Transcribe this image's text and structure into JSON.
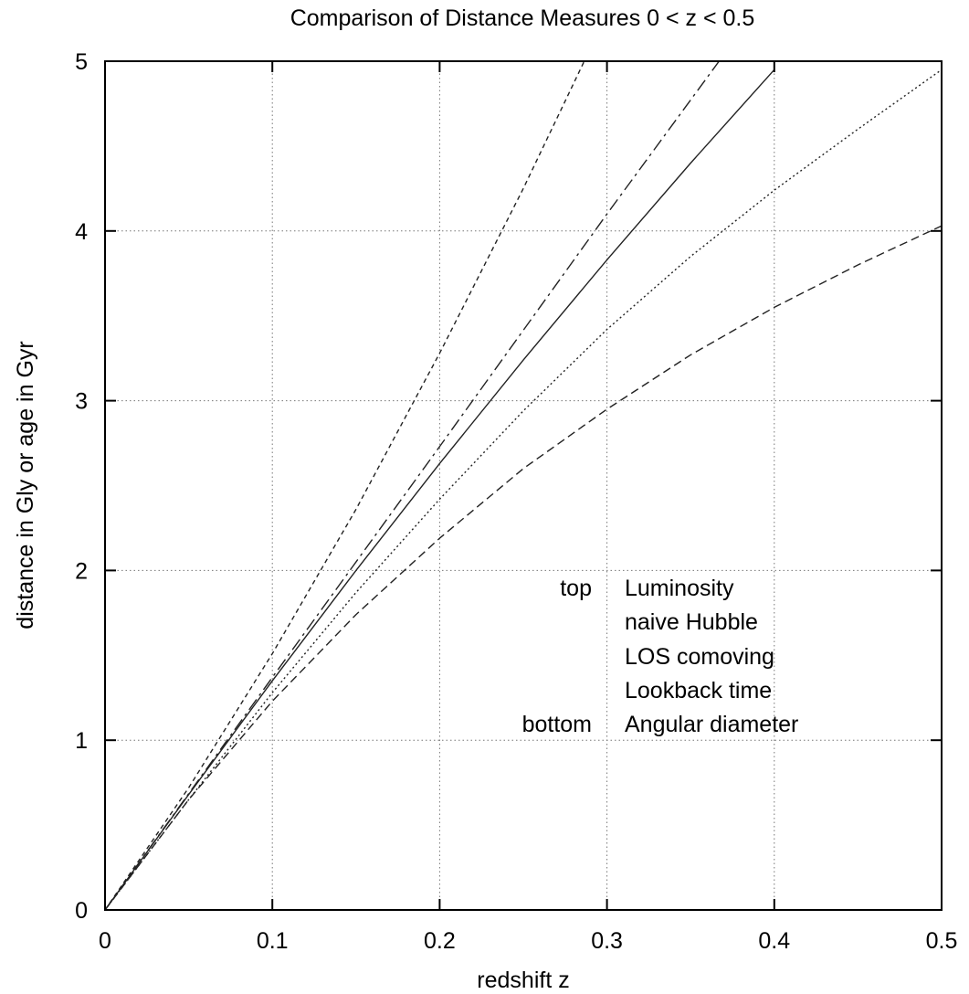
{
  "chart_data": {
    "type": "line",
    "title": "Comparison of Distance Measures 0 < z < 0.5",
    "xlabel": "redshift z",
    "ylabel": "distance in Gly or age in Gyr",
    "xlim": [
      0,
      0.5
    ],
    "ylim": [
      0,
      5
    ],
    "xticks": [
      "0",
      "0.1",
      "0.2",
      "0.3",
      "0.4",
      "0.5"
    ],
    "yticks": [
      "0",
      "1",
      "2",
      "3",
      "4",
      "5"
    ],
    "grid": true,
    "legend": {
      "placement": "center-right",
      "top_label": "top",
      "bottom_label": "bottom",
      "entries": [
        "Luminosity",
        "naive Hubble",
        "LOS comoving",
        "Lookback time",
        "Angular diameter"
      ]
    },
    "series": [
      {
        "name": "Luminosity",
        "dash": "short-dash",
        "x": [
          0,
          0.05,
          0.1,
          0.15,
          0.2,
          0.25,
          0.3
        ],
        "y": [
          0,
          0.72,
          1.51,
          2.36,
          3.28,
          4.25,
          5.28
        ]
      },
      {
        "name": "naive Hubble",
        "dash": "dash-dot",
        "x": [
          0,
          0.1,
          0.2,
          0.3,
          0.367
        ],
        "y": [
          0,
          1.37,
          2.73,
          4.1,
          5.0
        ]
      },
      {
        "name": "LOS comoving",
        "dash": "solid",
        "x": [
          0,
          0.05,
          0.1,
          0.15,
          0.2,
          0.25,
          0.3,
          0.35,
          0.4
        ],
        "y": [
          0,
          0.68,
          1.35,
          2.0,
          2.63,
          3.24,
          3.83,
          4.4,
          4.95
        ]
      },
      {
        "name": "Lookback time",
        "dash": "dotted",
        "x": [
          0,
          0.05,
          0.1,
          0.15,
          0.2,
          0.25,
          0.3,
          0.35,
          0.4,
          0.45,
          0.5
        ],
        "y": [
          0,
          0.65,
          1.28,
          1.87,
          2.42,
          2.94,
          3.42,
          3.85,
          4.24,
          4.6,
          4.95
        ]
      },
      {
        "name": "Angular diameter",
        "dash": "long-dash",
        "x": [
          0,
          0.05,
          0.1,
          0.15,
          0.2,
          0.25,
          0.3,
          0.35,
          0.4,
          0.45,
          0.5
        ],
        "y": [
          0,
          0.65,
          1.23,
          1.74,
          2.19,
          2.6,
          2.95,
          3.27,
          3.55,
          3.8,
          4.03
        ]
      }
    ]
  }
}
